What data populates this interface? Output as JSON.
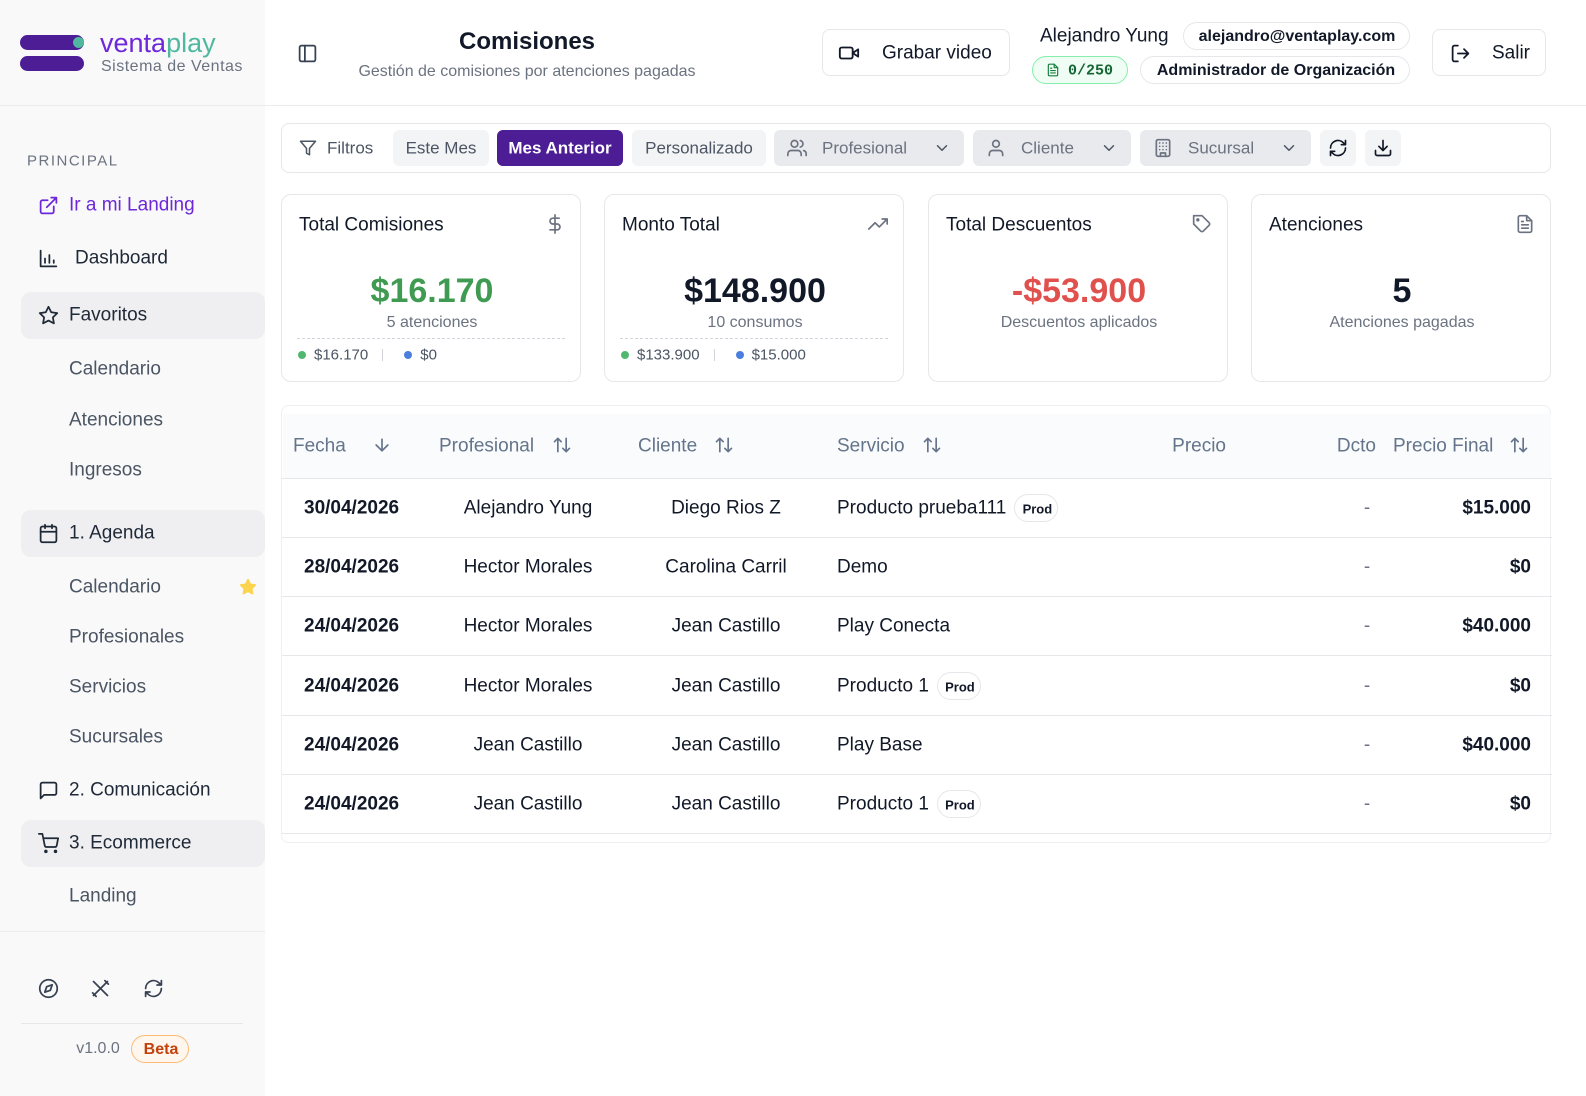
{
  "brand": {
    "name_first": "venta",
    "name_second": "play",
    "tagline": "Sistema de Ventas"
  },
  "header": {
    "title": "Comisiones",
    "subtitle": "Gestión de comisiones por atenciones pagadas",
    "record_button": "Grabar video",
    "user_name": "Alejandro Yung",
    "user_email": "alejandro@ventaplay.com",
    "quota": "0/250",
    "role": "Administrador de Organización",
    "logout_button": "Salir"
  },
  "sidebar": {
    "section": "PRINCIPAL",
    "items": [
      {
        "label": "Ir a mi Landing"
      },
      {
        "label": "Dashboard"
      },
      {
        "label": "Favoritos",
        "children": [
          "Calendario",
          "Atenciones",
          "Ingresos"
        ]
      },
      {
        "label": "1. Agenda",
        "children": [
          "Calendario",
          "Profesionales",
          "Servicios",
          "Sucursales"
        ]
      },
      {
        "label": "2. Comunicación"
      },
      {
        "label": "3. Ecommerce",
        "children": [
          "Landing"
        ]
      }
    ],
    "version": "v1.0.0",
    "badge": "Beta"
  },
  "filters": {
    "label": "Filtros",
    "periods": [
      "Este Mes",
      "Mes Anterior",
      "Personalizado"
    ],
    "active_period": 1,
    "dropdowns": [
      "Profesional",
      "Cliente",
      "Sucursal"
    ]
  },
  "cards": [
    {
      "title": "Total Comisiones",
      "value": "$16.170",
      "caption": "5 atenciones",
      "breakdown": [
        "$16.170",
        "$0"
      ]
    },
    {
      "title": "Monto Total",
      "value": "$148.900",
      "caption": "10 consumos",
      "breakdown": [
        "$133.900",
        "$15.000"
      ]
    },
    {
      "title": "Total Descuentos",
      "value": "-$53.900",
      "caption": "Descuentos aplicados"
    },
    {
      "title": "Atenciones",
      "value": "5",
      "caption": "Atenciones pagadas"
    }
  ],
  "table": {
    "columns": [
      "Fecha",
      "Profesional",
      "Cliente",
      "Servicio",
      "Precio",
      "Dcto",
      "Precio Final"
    ],
    "rows": [
      {
        "fecha": "30/04/2026",
        "profesional": "Alejandro Yung",
        "cliente": "Diego Rios Z",
        "servicio": "Producto prueba111",
        "badge": "Prod",
        "dcto": "-",
        "precio_final": "$15.000"
      },
      {
        "fecha": "28/04/2026",
        "profesional": "Hector Morales",
        "cliente": "Carolina Carril",
        "servicio": "Demo",
        "dcto": "-",
        "precio_final": "$0"
      },
      {
        "fecha": "24/04/2026",
        "profesional": "Hector Morales",
        "cliente": "Jean Castillo",
        "servicio": "Play Conecta",
        "dcto": "-",
        "precio_final": "$40.000"
      },
      {
        "fecha": "24/04/2026",
        "profesional": "Hector Morales",
        "cliente": "Jean Castillo",
        "servicio": "Producto 1",
        "badge": "Prod",
        "dcto": "-",
        "precio_final": "$0"
      },
      {
        "fecha": "24/04/2026",
        "profesional": "Jean Castillo",
        "cliente": "Jean Castillo",
        "servicio": "Play Base",
        "dcto": "-",
        "precio_final": "$40.000"
      },
      {
        "fecha": "24/04/2026",
        "profesional": "Jean Castillo",
        "cliente": "Jean Castillo",
        "servicio": "Producto 1",
        "badge": "Prod",
        "dcto": "-",
        "precio_final": "$0"
      }
    ]
  }
}
